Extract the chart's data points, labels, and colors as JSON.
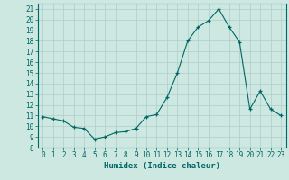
{
  "x": [
    0,
    1,
    2,
    3,
    4,
    5,
    6,
    7,
    8,
    9,
    10,
    11,
    12,
    13,
    14,
    15,
    16,
    17,
    18,
    19,
    20,
    21,
    22,
    23
  ],
  "y": [
    10.9,
    10.7,
    10.5,
    9.9,
    9.8,
    8.8,
    9.0,
    9.4,
    9.5,
    9.8,
    10.9,
    11.1,
    12.7,
    15.0,
    18.0,
    19.3,
    19.9,
    21.0,
    19.3,
    17.9,
    11.6,
    13.3,
    11.6,
    11.0
  ],
  "xlim": [
    -0.5,
    23.5
  ],
  "ylim": [
    8,
    21.5
  ],
  "yticks": [
    8,
    9,
    10,
    11,
    12,
    13,
    14,
    15,
    16,
    17,
    18,
    19,
    20,
    21
  ],
  "xticks": [
    0,
    1,
    2,
    3,
    4,
    5,
    6,
    7,
    8,
    9,
    10,
    11,
    12,
    13,
    14,
    15,
    16,
    17,
    18,
    19,
    20,
    21,
    22,
    23
  ],
  "xlabel": "Humidex (Indice chaleur)",
  "line_color": "#006666",
  "marker": "+",
  "marker_color": "#006666",
  "bg_color": "#cce8e0",
  "grid_color": "#b0cccc",
  "label_fontsize": 5.5,
  "xlabel_fontsize": 6.5
}
